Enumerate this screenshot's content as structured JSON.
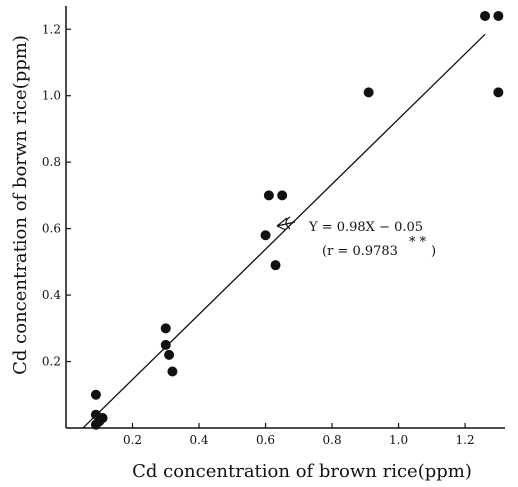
{
  "chart_data": {
    "type": "scatter",
    "title": "",
    "xlabel": "Cd concentration of brown rice(ppm)",
    "ylabel": "Cd concentration of borwn rice(ppm)",
    "xlim": [
      0,
      1.32
    ],
    "ylim": [
      0,
      1.27
    ],
    "x_ticks": [
      "0.2",
      "0.4",
      "0.6",
      "0.8",
      "1.0",
      "1.2"
    ],
    "y_ticks": [
      "0.2",
      "0.4",
      "0.6",
      "0.8",
      "1.0",
      "1.2"
    ],
    "grid": false,
    "points": [
      {
        "x": 0.09,
        "y": 0.1
      },
      {
        "x": 0.09,
        "y": 0.04
      },
      {
        "x": 0.1,
        "y": 0.02
      },
      {
        "x": 0.11,
        "y": 0.03
      },
      {
        "x": 0.09,
        "y": 0.01
      },
      {
        "x": 0.3,
        "y": 0.3
      },
      {
        "x": 0.3,
        "y": 0.25
      },
      {
        "x": 0.31,
        "y": 0.22
      },
      {
        "x": 0.32,
        "y": 0.17
      },
      {
        "x": 0.6,
        "y": 0.58
      },
      {
        "x": 0.61,
        "y": 0.7
      },
      {
        "x": 0.65,
        "y": 0.7
      },
      {
        "x": 0.63,
        "y": 0.49
      },
      {
        "x": 0.91,
        "y": 1.01
      },
      {
        "x": 1.26,
        "y": 1.24
      },
      {
        "x": 1.3,
        "y": 1.24
      },
      {
        "x": 1.3,
        "y": 1.01
      }
    ],
    "fit_line": {
      "slope": 0.98,
      "intercept": -0.05,
      "x_range": [
        0.05,
        1.26
      ]
    },
    "annotation": {
      "equation": "Y = 0.98X − 0.05",
      "correlation": "(r = 0.9783",
      "significance": "* *",
      "close_paren": ")"
    }
  }
}
